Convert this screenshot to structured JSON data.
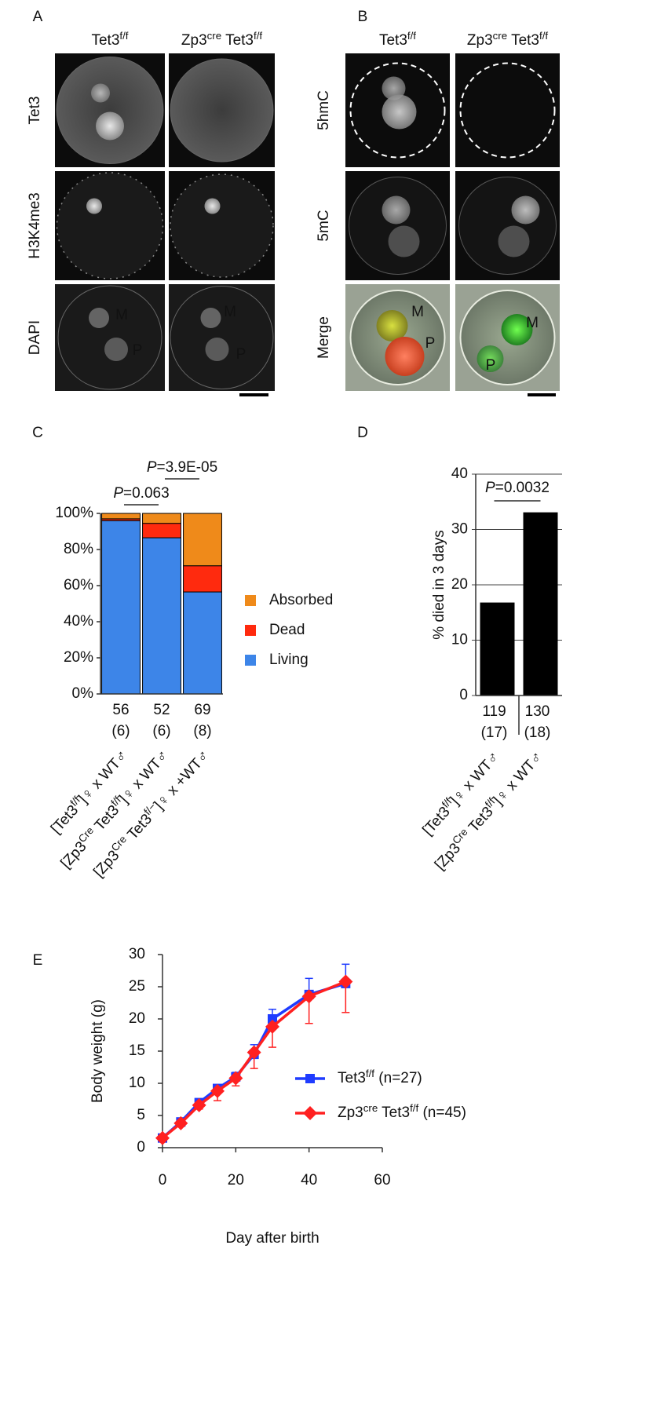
{
  "panel_labels": [
    "A",
    "B",
    "C",
    "D",
    "E"
  ],
  "image_panels": [
    {
      "columns": [
        [
          "Tet3",
          "f/f"
        ],
        [
          "Zp3",
          "cre",
          " Tet3",
          "f/f"
        ]
      ],
      "rows": [
        "Tet3",
        "H3K4me3",
        "DAPI"
      ],
      "markers": [
        "M",
        "P",
        "M",
        "P"
      ]
    },
    {
      "columns": [
        [
          "Tet3",
          "f/f"
        ],
        [
          "Zp3",
          "cre",
          " Tet3",
          "f/f"
        ]
      ],
      "rows": [
        "5hmC",
        "5mC",
        "Merge"
      ],
      "markers": [
        "M",
        "P",
        "M",
        "P"
      ]
    }
  ],
  "chart_data": [
    {
      "type": "stacked_bar",
      "categories": [
        [
          "56",
          "(6)"
        ],
        [
          "52",
          "(6)"
        ],
        [
          "69",
          "(8)"
        ]
      ],
      "group_labels": [
        [
          "[Tet3",
          "f/f",
          "]♀ x WT♂"
        ],
        [
          "[Zp3",
          "Cre",
          " Tet3",
          "f/f",
          "]♀ x WT♂"
        ],
        [
          "[Zp3",
          "Cre",
          " Tet3",
          "f/−",
          "]♀ x +WT♂"
        ]
      ],
      "series": [
        {
          "name": "Living",
          "color": "#3d85e8",
          "values": [
            96,
            86.5,
            56.5
          ]
        },
        {
          "name": "Dead",
          "color": "#ff2a0e",
          "values": [
            1,
            8,
            14.5
          ]
        },
        {
          "name": "Absorbed",
          "color": "#ef8a1a",
          "values": [
            3,
            5.5,
            29
          ]
        }
      ],
      "ylim": [
        0,
        100
      ],
      "yticks": [
        {
          "value": 0,
          "label": "0%"
        },
        {
          "value": 20,
          "label": "20%"
        },
        {
          "value": 40,
          "label": "40%"
        },
        {
          "value": 60,
          "label": "60%"
        },
        {
          "value": 80,
          "label": "80%"
        },
        {
          "value": 100,
          "label": "100%"
        }
      ],
      "annotations": [
        "P=0.063",
        "P=3.9E-05"
      ],
      "legend": "right"
    },
    {
      "type": "bar",
      "ylabel": "% died in 3 days",
      "categories": [
        [
          "119",
          "(17)"
        ],
        [
          "130",
          "(18)"
        ]
      ],
      "group_labels": [
        [
          "[Tet3",
          "f/f",
          "]♀ x WT♂"
        ],
        [
          "[Zp3",
          "Cre",
          " Tet3",
          "f/f",
          "]♀ x WT♂"
        ]
      ],
      "values": [
        16.8,
        33.1
      ],
      "color": "#000000",
      "ylim": [
        0,
        40
      ],
      "yticks": [
        0,
        10,
        20,
        30,
        40
      ],
      "grid": true,
      "annotations": [
        "P=0.0032"
      ]
    },
    {
      "type": "line",
      "xlabel": "Day after birth",
      "ylabel": "Body weight (g)",
      "x": [
        0,
        5,
        10,
        15,
        20,
        25,
        30,
        40,
        50
      ],
      "series": [
        {
          "name": [
            "Tet3",
            "f/f",
            " (n=27)"
          ],
          "color": "#1f3cff",
          "marker": "square",
          "error_direction": "up",
          "values": [
            1.5,
            4,
            7,
            9.2,
            11,
            14.5,
            20,
            23.8,
            25.5
          ],
          "errors": [
            0.3,
            0.4,
            0.5,
            0.5,
            0.7,
            1.5,
            1.5,
            2.5,
            3
          ]
        },
        {
          "name": [
            "Zp3",
            "cre",
            " Tet3",
            "f/f",
            " (n=45)"
          ],
          "color": "#ff2020",
          "marker": "diamond",
          "error_direction": "down",
          "values": [
            1.5,
            3.8,
            6.6,
            8.8,
            10.8,
            14.8,
            18.8,
            23.5,
            25.8
          ],
          "errors": [
            0.3,
            0.5,
            0.6,
            1.5,
            1.2,
            2.5,
            3.2,
            4.2,
            4.8
          ]
        }
      ],
      "xlim": [
        0,
        60
      ],
      "xticks": [
        0,
        20,
        40,
        60
      ],
      "ylim": [
        0,
        30
      ],
      "yticks": [
        0,
        5,
        10,
        15,
        20,
        25,
        30
      ],
      "legend": "lower right"
    }
  ]
}
